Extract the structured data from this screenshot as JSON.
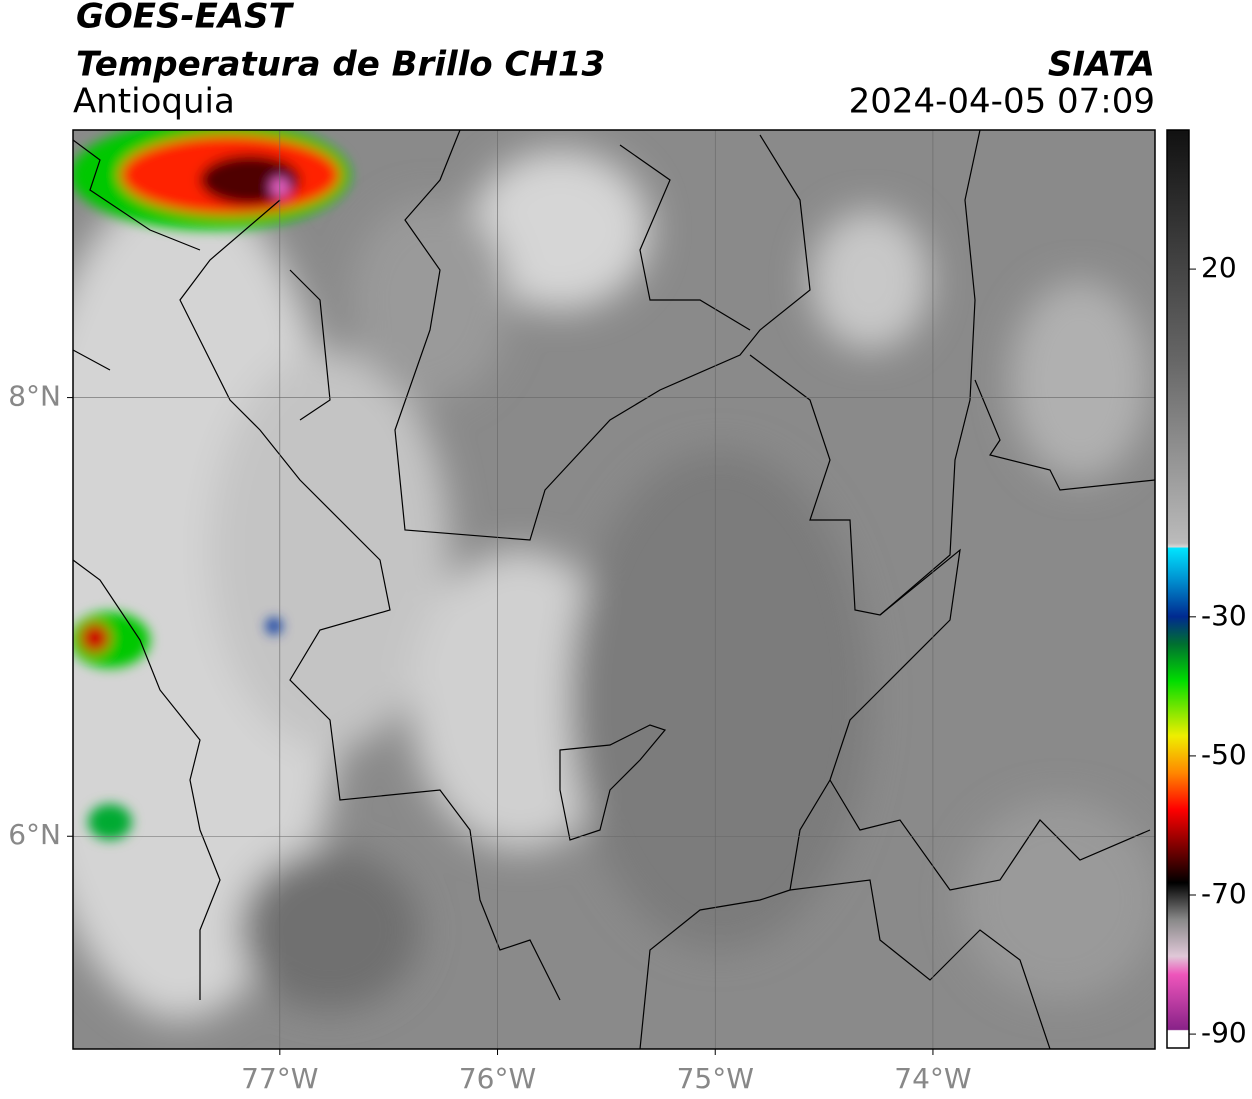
{
  "header": {
    "satellite": "GOES-EAST",
    "product": "Temperatura de Brillo CH13",
    "region": "Antioquia",
    "source": "SIATA",
    "datetime": "2024-04-05 07:09"
  },
  "map": {
    "xlim": [
      -77.95,
      -72.98
    ],
    "ylim": [
      5.03,
      9.22
    ],
    "xticks": [
      {
        "value": -77,
        "label": "77°W"
      },
      {
        "value": -76,
        "label": "76°W"
      },
      {
        "value": -75,
        "label": "75°W"
      },
      {
        "value": -74,
        "label": "74°W"
      }
    ],
    "yticks": [
      {
        "value": 8,
        "label": "8°N"
      },
      {
        "value": 6,
        "label": "6°N"
      }
    ],
    "grid": true
  },
  "colorbar": {
    "lim": [
      -92,
      40
    ],
    "ticks": [
      20,
      -30,
      -50,
      -70,
      -90
    ]
  }
}
